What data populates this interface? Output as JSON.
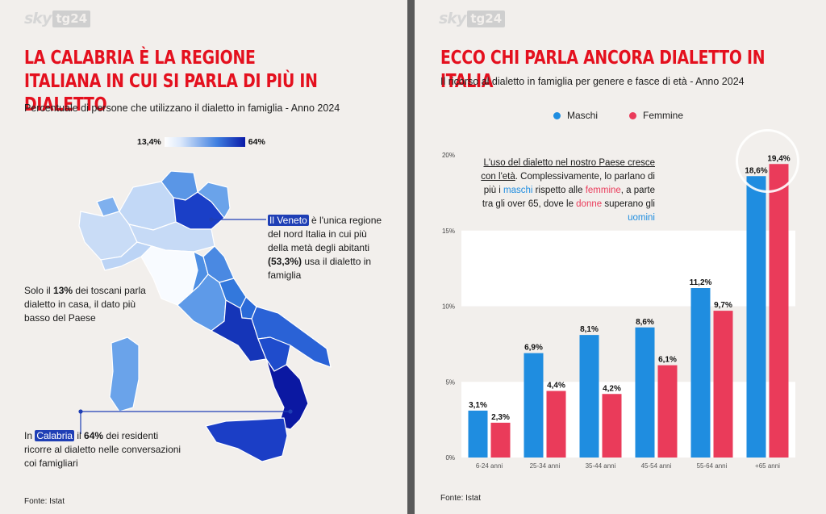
{
  "brand": {
    "sky": "sky",
    "tg": "tg24"
  },
  "left": {
    "title": "LA CALABRIA È LA REGIONE ITALIANA IN CUI SI PARLA DI PIÙ IN DIALETTO",
    "subtitle": "Percentuale di persone che utilizzano il dialetto in famiglia - Anno 2024",
    "scale_min": "13,4%",
    "scale_max": "64%",
    "veneto": {
      "hl": "Il Veneto",
      "t1": " è l'unica regione del nord Italia in cui più della metà degli abitanti ",
      "b": "(53,3%)",
      "t2": " usa il dialetto in famiglia"
    },
    "toscana": {
      "t1": "Solo il ",
      "b": "13%",
      "t2": " dei toscani parla dialetto in casa, il dato più basso del Paese"
    },
    "calabria": {
      "t0": "In ",
      "hl": "Calabria",
      "t1": " il ",
      "b": "64%",
      "t2": " dei residenti ricorre al dialetto nelle conversazioni coi famigliari"
    },
    "source": "Fonte: Istat"
  },
  "right": {
    "title": "ECCO CHI PARLA ANCORA DIALETTO IN ITALIA",
    "subtitle": "Il ricorso al dialetto in famiglia per genere e fasce di età - Anno 2024",
    "note": {
      "u": "L'uso del dialetto nel nostro Paese cresce con l'età",
      "t1": ". Complessivamente, lo parlano di più i ",
      "m1": "maschi",
      "t2": " rispetto alle ",
      "f1": "femmine",
      "t3": ", a parte tra gli over 65, dove le ",
      "f2": "donne",
      "t4": " superano gli ",
      "m2": "uomini"
    },
    "source": "Fonte: Istat"
  },
  "colors": {
    "maschi": "#1f8de0",
    "femmine": "#ea3b5a",
    "accent": "#e4101e"
  },
  "chart_data": {
    "type": "bar",
    "title": "ECCO CHI PARLA ANCORA DIALETTO IN ITALIA",
    "categories": [
      "6-24 anni",
      "25-34 anni",
      "35-44 anni",
      "45-54 anni",
      "55-64 anni",
      "+65 anni"
    ],
    "series": [
      {
        "name": "Maschi",
        "values": [
          3.1,
          6.9,
          8.1,
          8.6,
          11.2,
          18.6
        ],
        "labels": [
          "3,1%",
          "6,9%",
          "8,1%",
          "8,6%",
          "11,2%",
          "18,6%"
        ]
      },
      {
        "name": "Femmine",
        "values": [
          2.3,
          4.4,
          4.2,
          6.1,
          9.7,
          19.4
        ],
        "labels": [
          "2,3%",
          "4,4%",
          "4,2%",
          "6,1%",
          "9,7%",
          "19,4%"
        ]
      }
    ],
    "yticks": [
      0,
      5,
      10,
      15,
      20
    ],
    "ytick_labels": [
      "0%",
      "5%",
      "10%",
      "15%",
      "20%"
    ],
    "ylim": [
      0,
      20
    ],
    "legend": "top"
  }
}
